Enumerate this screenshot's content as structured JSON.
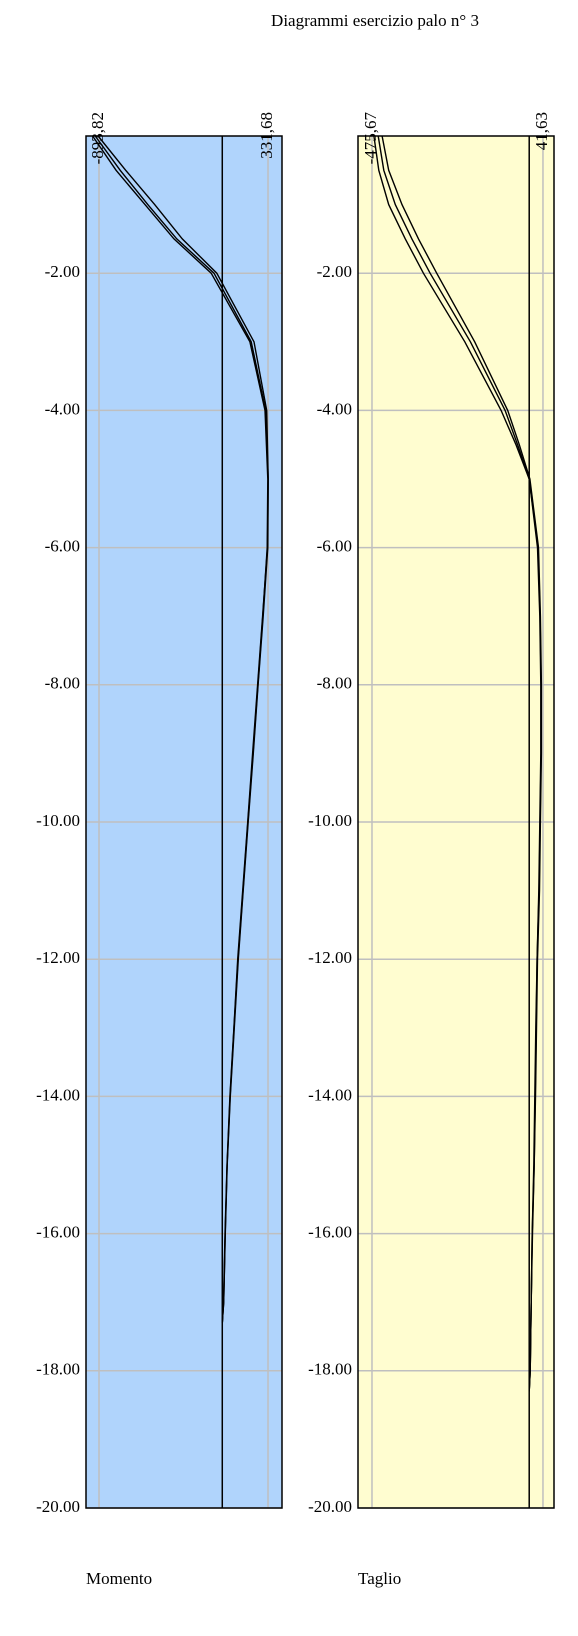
{
  "title": "Diagrammi esercizio palo n° 3",
  "chart_data": [
    {
      "type": "line",
      "xlabel": "Momento",
      "background": "#b0d4fc",
      "grid": true,
      "xlim": [
        -988,
        433
      ],
      "xticks": [
        {
          "value": -893.82,
          "label": "-893,82"
        },
        {
          "value": 331.68,
          "label": "331,68"
        }
      ],
      "ylim": [
        0,
        -20
      ],
      "yticks": [
        {
          "value": -2,
          "label": "-2.00"
        },
        {
          "value": -4,
          "label": "-4.00"
        },
        {
          "value": -6,
          "label": "-6.00"
        },
        {
          "value": -8,
          "label": "-8.00"
        },
        {
          "value": -10,
          "label": "-10.00"
        },
        {
          "value": -12,
          "label": "-12.00"
        },
        {
          "value": -14,
          "label": "-14.00"
        },
        {
          "value": -16,
          "label": "-16.00"
        },
        {
          "value": -18,
          "label": "-18.00"
        },
        {
          "value": -20,
          "label": "-20.00"
        }
      ],
      "y": [
        0,
        -0.5,
        -1,
        -1.5,
        -2,
        -3,
        -4,
        -5,
        -6,
        -7,
        -8,
        -9,
        -10,
        -11,
        -12,
        -13,
        -14,
        -15,
        -16,
        -17,
        -17.3
      ],
      "series": [
        {
          "color": "#000000",
          "values": [
            -921,
            -740,
            -540,
            -330,
            -60,
            210,
            315,
            333,
            330,
            297,
            260,
            225,
            188,
            152,
            116,
            87,
            58,
            36,
            22,
            10,
            0
          ]
        },
        {
          "color": "#000000",
          "values": [
            -900,
            -700,
            -490,
            -290,
            -40,
            230,
            322,
            333,
            328,
            292,
            256,
            220,
            184,
            148,
            112,
            84,
            55,
            34,
            20,
            9,
            0
          ]
        },
        {
          "color": "#000000",
          "values": [
            -940,
            -770,
            -560,
            -350,
            -80,
            200,
            310,
            330,
            326,
            294,
            258,
            223,
            186,
            150,
            114,
            85,
            57,
            35,
            21,
            10,
            0
          ]
        }
      ]
    },
    {
      "type": "line",
      "xlabel": "Taglio",
      "background": "#fffdd0",
      "grid": true,
      "xlim": [
        -518,
        75
      ],
      "xticks": [
        {
          "value": -475.67,
          "label": "-475,67"
        },
        {
          "value": 41.63,
          "label": "41,63"
        }
      ],
      "ylim": [
        0,
        -20
      ],
      "yticks": [
        {
          "value": -2,
          "label": "-2.00"
        },
        {
          "value": -4,
          "label": "-4.00"
        },
        {
          "value": -6,
          "label": "-6.00"
        },
        {
          "value": -8,
          "label": "-8.00"
        },
        {
          "value": -10,
          "label": "-10.00"
        },
        {
          "value": -12,
          "label": "-12.00"
        },
        {
          "value": -14,
          "label": "-14.00"
        },
        {
          "value": -16,
          "label": "-16.00"
        },
        {
          "value": -18,
          "label": "-18.00"
        },
        {
          "value": -20,
          "label": "-20.00"
        }
      ],
      "y": [
        0,
        -0.5,
        -1,
        -1.5,
        -2,
        -3,
        -4,
        -4.5,
        -5,
        -6,
        -7,
        -8,
        -9,
        -10,
        -11,
        -12,
        -13,
        -14,
        -15,
        -16,
        -17,
        -18,
        -18.3
      ],
      "series": [
        {
          "color": "#000000",
          "values": [
            -457,
            -440,
            -405,
            -355,
            -300,
            -178,
            -73,
            -35,
            0,
            27,
            33,
            36,
            36,
            33,
            30,
            24,
            21,
            18,
            15,
            9,
            6,
            3,
            0
          ]
        },
        {
          "color": "#000000",
          "values": [
            -470,
            -455,
            -425,
            -375,
            -320,
            -195,
            -85,
            -40,
            0,
            25,
            32,
            35,
            35,
            32,
            29,
            24,
            20,
            17,
            14,
            9,
            6,
            3,
            0
          ]
        },
        {
          "color": "#000000",
          "values": [
            -445,
            -425,
            -385,
            -335,
            -280,
            -165,
            -65,
            -30,
            2,
            28,
            34,
            37,
            37,
            34,
            31,
            25,
            22,
            19,
            15,
            10,
            6,
            3,
            0
          ]
        }
      ]
    }
  ]
}
